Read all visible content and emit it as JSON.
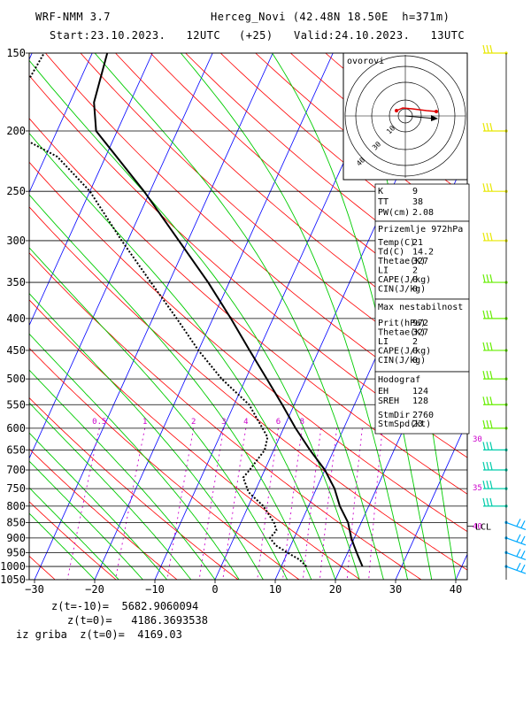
{
  "header": {
    "model": "WRF-NMM 3.7",
    "station": "Herceg_Novi (42.48N 18.50E  h=371m)",
    "start": "Start:23.10.2023.   12UTC",
    "offset": "(+25)",
    "valid": "Valid:24.10.2023.   13UTC"
  },
  "hodograph_label": "ovorovi",
  "stations_box": {
    "indices": [
      {
        "k": "K",
        "v": "9"
      },
      {
        "k": "TT",
        "v": "38"
      },
      {
        "k": "PW(cm)",
        "v": "2.08"
      }
    ],
    "surface_title": "Prizemlje 972hPa",
    "surface": [
      {
        "k": "Temp(C)",
        "v": "21"
      },
      {
        "k": "Td(C)",
        "v": "14.2"
      },
      {
        "k": "Thetae(K)",
        "v": "327"
      },
      {
        "k": "LI",
        "v": "2"
      },
      {
        "k": "CAPE(J/kg)",
        "v": "0"
      },
      {
        "k": "CIN(J/kg)",
        "v": "0"
      }
    ],
    "unstable_title": "Max nestabilnost",
    "unstable": [
      {
        "k": "Prit(hPa)",
        "v": "972"
      },
      {
        "k": "Thetae(K)",
        "v": "327"
      },
      {
        "k": "LI",
        "v": "2"
      },
      {
        "k": "CAPE(J/kg)",
        "v": "0"
      },
      {
        "k": "CIN(J/kg)",
        "v": "0"
      }
    ],
    "hodo_title": "Hodograf",
    "hodo": [
      {
        "k": "EH",
        "v": "124"
      },
      {
        "k": "SREH",
        "v": "128"
      },
      {
        "k": "StmDir",
        "v": "2760"
      },
      {
        "k": "StmSpd(kt)",
        "v": "23"
      }
    ]
  },
  "footer": {
    "z_minus10": "z(t=-10)=  5682.9060094",
    "z_zero": "z(t=0)=   4186.3693538",
    "iz_griba": "iz griba  z(t=0)=  4169.03"
  },
  "colors": {
    "isotherm": "#0000ff",
    "dry_adiabat": "#ff0000",
    "moist_adiabat": "#00cc00",
    "mixing_ratio": "#cc00cc",
    "barb_upper": "#e8e800",
    "barb_mid": "#66ee00",
    "barb_low": "#00ccaa",
    "barb_surface": "#00aaff"
  },
  "chart_data": {
    "type": "skew-t log-p",
    "xlabel": "",
    "ylabel": "",
    "pressure_levels": [
      150,
      200,
      250,
      300,
      350,
      400,
      450,
      500,
      550,
      600,
      650,
      700,
      750,
      800,
      850,
      900,
      950,
      1000,
      1050
    ],
    "temperature_ticks": [
      -30,
      -20,
      -10,
      0,
      10,
      20,
      30,
      40
    ],
    "mixing_ratio_labels": [
      "0.5",
      "1",
      "2",
      "3",
      "4",
      "6",
      "8"
    ],
    "lcl_label": "LCL",
    "lcl_pressure": 862,
    "barb_speed_labels": [
      {
        "label": "30",
        "p": 622
      },
      {
        "label": "35",
        "p": 745
      },
      {
        "label": "40",
        "p": 858
      }
    ],
    "temperature_profile": [
      {
        "p": 1000,
        "t": 23.5
      },
      {
        "p": 975,
        "t": 22.5
      },
      {
        "p": 950,
        "t": 21.5
      },
      {
        "p": 925,
        "t": 20.5
      },
      {
        "p": 900,
        "t": 19.5
      },
      {
        "p": 850,
        "t": 17.8
      },
      {
        "p": 800,
        "t": 15.2
      },
      {
        "p": 750,
        "t": 13.0
      },
      {
        "p": 700,
        "t": 10.0
      },
      {
        "p": 650,
        "t": 6.0
      },
      {
        "p": 600,
        "t": 2.0
      },
      {
        "p": 550,
        "t": -2.0
      },
      {
        "p": 500,
        "t": -6.5
      },
      {
        "p": 450,
        "t": -11.5
      },
      {
        "p": 400,
        "t": -17.0
      },
      {
        "p": 350,
        "t": -23.5
      },
      {
        "p": 300,
        "t": -31.5
      },
      {
        "p": 250,
        "t": -41.0
      },
      {
        "p": 200,
        "t": -53.5
      },
      {
        "p": 180,
        "t": -56.0
      },
      {
        "p": 150,
        "t": -57.5
      }
    ],
    "dewpoint_profile": [
      {
        "p": 1000,
        "t": 14.2
      },
      {
        "p": 975,
        "t": 12.5
      },
      {
        "p": 950,
        "t": 10.0
      },
      {
        "p": 925,
        "t": 7.5
      },
      {
        "p": 900,
        "t": 6.0
      },
      {
        "p": 875,
        "t": 6.5
      },
      {
        "p": 850,
        "t": 5.5
      },
      {
        "p": 800,
        "t": 2.5
      },
      {
        "p": 760,
        "t": -1.0
      },
      {
        "p": 720,
        "t": -3.0
      },
      {
        "p": 700,
        "t": -2.5
      },
      {
        "p": 650,
        "t": -1.5
      },
      {
        "p": 620,
        "t": -2.0
      },
      {
        "p": 600,
        "t": -3.5
      },
      {
        "p": 550,
        "t": -7.5
      },
      {
        "p": 500,
        "t": -14.0
      },
      {
        "p": 450,
        "t": -20.0
      },
      {
        "p": 400,
        "t": -26.0
      },
      {
        "p": 350,
        "t": -33.0
      },
      {
        "p": 300,
        "t": -41.0
      },
      {
        "p": 250,
        "t": -50.0
      },
      {
        "p": 220,
        "t": -58.0
      },
      {
        "p": 200,
        "t": -68.0
      },
      {
        "p": 180,
        "t": -69.0
      },
      {
        "p": 150,
        "t": -68.0
      }
    ]
  }
}
